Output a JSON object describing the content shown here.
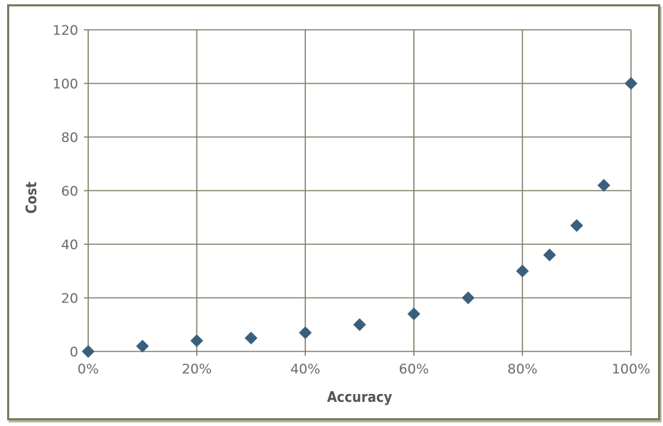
{
  "chart_data": {
    "type": "scatter",
    "title": "",
    "xlabel": "Accuracy",
    "ylabel": "Cost",
    "xlim": [
      0,
      100
    ],
    "ylim": [
      0,
      120
    ],
    "x_ticks": [
      0,
      20,
      40,
      60,
      80,
      100
    ],
    "x_tick_labels": [
      "0%",
      "20%",
      "40%",
      "60%",
      "80%",
      "100%"
    ],
    "y_ticks": [
      0,
      20,
      40,
      60,
      80,
      100,
      120
    ],
    "y_tick_labels": [
      "0",
      "20",
      "40",
      "60",
      "80",
      "100",
      "120"
    ],
    "grid": true,
    "legend": "none",
    "marker": "diamond",
    "marker_color": "#3a5f7c",
    "grid_color": "#7f7f66",
    "series": [
      {
        "points": [
          {
            "x": 0,
            "y": 0
          },
          {
            "x": 10,
            "y": 2
          },
          {
            "x": 20,
            "y": 4
          },
          {
            "x": 30,
            "y": 5
          },
          {
            "x": 40,
            "y": 7
          },
          {
            "x": 50,
            "y": 10
          },
          {
            "x": 60,
            "y": 14
          },
          {
            "x": 70,
            "y": 20
          },
          {
            "x": 80,
            "y": 30
          },
          {
            "x": 85,
            "y": 36
          },
          {
            "x": 90,
            "y": 47
          },
          {
            "x": 95,
            "y": 62
          },
          {
            "x": 100,
            "y": 100
          }
        ]
      }
    ]
  }
}
